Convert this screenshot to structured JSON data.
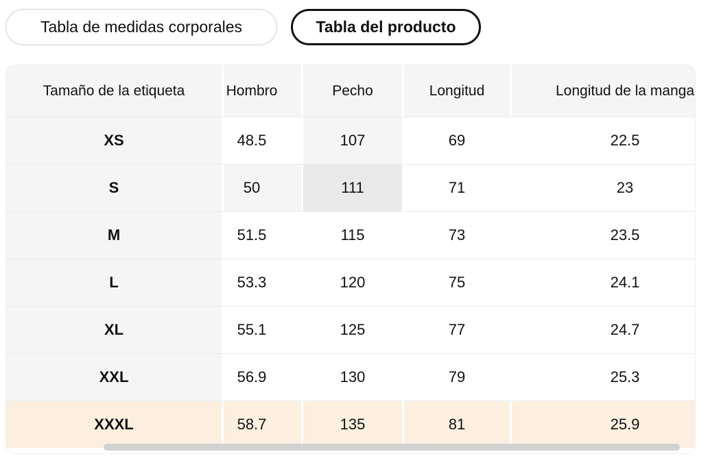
{
  "tabs": [
    {
      "label": "Tabla de medidas corporales",
      "selected": false
    },
    {
      "label": "Tabla del producto",
      "selected": true
    }
  ],
  "table": {
    "columns": [
      "Tamaño de la etiqueta",
      "Hombro",
      "Pecho",
      "Longitud",
      "Longitud de la manga"
    ],
    "rows": [
      {
        "label": "XS",
        "values": [
          "48.5",
          "107",
          "69",
          "22.5"
        ]
      },
      {
        "label": "S",
        "values": [
          "50",
          "111",
          "71",
          "23"
        ]
      },
      {
        "label": "M",
        "values": [
          "51.5",
          "115",
          "73",
          "23.5"
        ]
      },
      {
        "label": "L",
        "values": [
          "53.3",
          "120",
          "75",
          "24.1"
        ]
      },
      {
        "label": "XL",
        "values": [
          "55.1",
          "125",
          "77",
          "24.7"
        ]
      },
      {
        "label": "XXL",
        "values": [
          "56.9",
          "130",
          "79",
          "25.3"
        ]
      },
      {
        "label": "XXXL",
        "values": [
          "58.7",
          "135",
          "81",
          "25.9"
        ]
      }
    ],
    "selection": {
      "selected_cell_row": "S",
      "selected_cell_column": "Pecho",
      "selected_cell_value": "111",
      "highlighted_row": "XXXL"
    }
  },
  "colors": {
    "header_bg": "#f5f5f6",
    "highlight_path": "#f5f5f6",
    "highlight_cell": "#e9e9ea",
    "recommended_row_bg": "#fcefe0",
    "row_border": "#ececec",
    "scrollbar_thumb": "#d2d2d2",
    "tab_border": "#cfcfcf",
    "tab_selected_border": "#111111"
  }
}
